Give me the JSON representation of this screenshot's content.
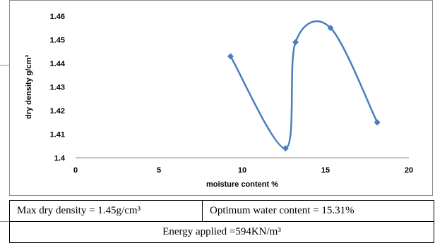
{
  "chart_data": {
    "type": "line",
    "smooth": true,
    "xlabel": "moisture content %",
    "ylabel": "dry density g/cm³",
    "xlim": [
      0,
      20
    ],
    "ylim": [
      1.4,
      1.46
    ],
    "x_ticks": [
      "0",
      "5",
      "10",
      "15",
      "20"
    ],
    "y_ticks": [
      "1.4",
      "1.41",
      "1.42",
      "1.43",
      "1.44",
      "1.45",
      "1.46"
    ],
    "grid": false,
    "legend": "none",
    "series_color": "#4a7ebb",
    "series": [
      {
        "points": [
          {
            "x": 9.3,
            "y": 1.443
          },
          {
            "x": 12.6,
            "y": 1.404
          },
          {
            "x": 13.2,
            "y": 1.449
          },
          {
            "x": 15.3,
            "y": 1.455
          },
          {
            "x": 18.1,
            "y": 1.415
          }
        ]
      }
    ]
  },
  "table": {
    "max_dry_density": "Max dry density = 1.45g/cm³",
    "optimum_water_content": "Optimum water content = 15.31%",
    "energy_applied": "Energy applied =594KN/m³"
  }
}
